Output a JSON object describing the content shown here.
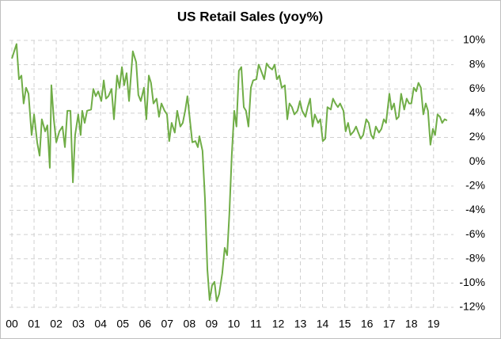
{
  "chart_data": {
    "type": "line",
    "title": "US Retail Sales (yoy%)",
    "x": [
      2000.0,
      2000.21,
      2000.32,
      2000.43,
      2000.53,
      2000.64,
      2000.75,
      2000.89,
      2001.0,
      2001.14,
      2001.25,
      2001.35,
      2001.5,
      2001.6,
      2001.71,
      2001.78,
      2001.89,
      2002.0,
      2002.14,
      2002.28,
      2002.39,
      2002.5,
      2002.64,
      2002.75,
      2002.85,
      2002.99,
      2003.1,
      2003.17,
      2003.28,
      2003.39,
      2003.57,
      2003.67,
      2003.78,
      2003.89,
      2004.03,
      2004.14,
      2004.24,
      2004.35,
      2004.49,
      2004.6,
      2004.74,
      2004.85,
      2004.96,
      2005.06,
      2005.17,
      2005.28,
      2005.45,
      2005.6,
      2005.7,
      2005.81,
      2005.95,
      2006.06,
      2006.17,
      2006.27,
      2006.38,
      2006.52,
      2006.63,
      2006.74,
      2006.88,
      2006.99,
      2007.09,
      2007.2,
      2007.34,
      2007.45,
      2007.59,
      2007.7,
      2007.81,
      2007.91,
      2008.02,
      2008.13,
      2008.27,
      2008.38,
      2008.45,
      2008.59,
      2008.7,
      2008.81,
      2008.91,
      2009.02,
      2009.13,
      2009.23,
      2009.34,
      2009.48,
      2009.59,
      2009.7,
      2009.8,
      2009.91,
      2010.02,
      2010.12,
      2010.23,
      2010.34,
      2010.45,
      2010.55,
      2010.66,
      2010.77,
      2010.87,
      2011.02,
      2011.12,
      2011.23,
      2011.37,
      2011.48,
      2011.59,
      2011.73,
      2011.84,
      2011.94,
      2012.05,
      2012.16,
      2012.3,
      2012.41,
      2012.51,
      2012.62,
      2012.73,
      2012.87,
      2012.98,
      2013.08,
      2013.23,
      2013.33,
      2013.44,
      2013.55,
      2013.65,
      2013.8,
      2013.9,
      2014.01,
      2014.12,
      2014.22,
      2014.37,
      2014.47,
      2014.58,
      2014.69,
      2014.79,
      2014.94,
      2015.04,
      2015.15,
      2015.26,
      2015.4,
      2015.51,
      2015.61,
      2015.72,
      2015.83,
      2015.97,
      2016.08,
      2016.19,
      2016.29,
      2016.4,
      2016.54,
      2016.65,
      2016.76,
      2016.86,
      2017.01,
      2017.11,
      2017.22,
      2017.33,
      2017.43,
      2017.54,
      2017.68,
      2017.79,
      2017.9,
      2018.0,
      2018.11,
      2018.22,
      2018.32,
      2018.43,
      2018.54,
      2018.65,
      2018.75,
      2018.86,
      2018.97,
      2019.07,
      2019.18,
      2019.29,
      2019.39,
      2019.5,
      2019.61
    ],
    "series": [
      {
        "color": "#70ad47",
        "values": [
          8.5,
          9.7,
          6.8,
          7.1,
          4.8,
          6.1,
          5.6,
          2.2,
          3.9,
          1.6,
          0.5,
          3.5,
          2.5,
          3.0,
          -0.5,
          6.3,
          3.5,
          1.6,
          2.5,
          2.9,
          1.2,
          4.2,
          4.2,
          -1.7,
          2.2,
          3.9,
          2.2,
          4.2,
          3.2,
          4.2,
          4.3,
          6.0,
          5.4,
          5.8,
          5.0,
          6.7,
          5.2,
          5.4,
          6.0,
          3.5,
          7.1,
          6.1,
          7.8,
          6.3,
          7.3,
          5.0,
          9.1,
          8.2,
          5.5,
          5.0,
          6.1,
          3.5,
          7.1,
          6.5,
          4.8,
          5.2,
          3.7,
          4.8,
          4.2,
          3.9,
          1.7,
          3.2,
          2.4,
          4.2,
          2.9,
          3.2,
          4.2,
          5.4,
          3.5,
          1.6,
          1.7,
          1.2,
          2.1,
          0.9,
          -3.0,
          -8.9,
          -11.4,
          -10.2,
          -9.9,
          -11.5,
          -10.9,
          -9.2,
          -7.1,
          -7.7,
          -4.3,
          0.6,
          4.2,
          2.9,
          7.5,
          7.8,
          4.5,
          4.2,
          2.9,
          6.1,
          6.7,
          6.8,
          8.0,
          7.5,
          6.8,
          8.1,
          7.8,
          7.6,
          8.0,
          6.8,
          7.1,
          6.1,
          6.3,
          3.5,
          4.8,
          4.5,
          3.9,
          4.2,
          5.0,
          4.2,
          3.7,
          4.5,
          5.2,
          2.9,
          3.9,
          3.2,
          3.5,
          1.7,
          1.9,
          4.5,
          4.3,
          5.2,
          4.8,
          4.5,
          4.8,
          4.2,
          2.5,
          3.2,
          2.2,
          2.5,
          2.9,
          2.4,
          1.9,
          2.2,
          3.5,
          3.2,
          2.2,
          1.9,
          2.9,
          2.4,
          2.7,
          3.5,
          3.2,
          5.6,
          4.3,
          4.8,
          3.5,
          3.7,
          5.6,
          4.3,
          5.2,
          4.8,
          4.8,
          6.1,
          5.8,
          6.5,
          6.1,
          3.9,
          4.8,
          4.2,
          1.4,
          2.7,
          2.2,
          3.9,
          3.7,
          3.2,
          3.5,
          3.4
        ]
      }
    ],
    "xlim": [
      2000,
      2019.9
    ],
    "xticks": [
      {
        "value": 2000,
        "label": "00"
      },
      {
        "value": 2001,
        "label": "01"
      },
      {
        "value": 2002,
        "label": "02"
      },
      {
        "value": 2003,
        "label": "03"
      },
      {
        "value": 2004,
        "label": "04"
      },
      {
        "value": 2005,
        "label": "05"
      },
      {
        "value": 2006,
        "label": "06"
      },
      {
        "value": 2007,
        "label": "07"
      },
      {
        "value": 2008,
        "label": "08"
      },
      {
        "value": 2009,
        "label": "09"
      },
      {
        "value": 2010,
        "label": "10"
      },
      {
        "value": 2011,
        "label": "11"
      },
      {
        "value": 2012,
        "label": "12"
      },
      {
        "value": 2013,
        "label": "13"
      },
      {
        "value": 2014,
        "label": "14"
      },
      {
        "value": 2015,
        "label": "15"
      },
      {
        "value": 2016,
        "label": "16"
      },
      {
        "value": 2017,
        "label": "17"
      },
      {
        "value": 2018,
        "label": "18"
      },
      {
        "value": 2019,
        "label": "19"
      }
    ],
    "ylim": [
      -12,
      10
    ],
    "yticks": [
      {
        "value": 10,
        "label": "10%"
      },
      {
        "value": 8,
        "label": "8%"
      },
      {
        "value": 6,
        "label": "6%"
      },
      {
        "value": 4,
        "label": "4%"
      },
      {
        "value": 2,
        "label": "2%"
      },
      {
        "value": 0,
        "label": "0%"
      },
      {
        "value": -2,
        "label": "-2%"
      },
      {
        "value": -4,
        "label": "-4%"
      },
      {
        "value": -6,
        "label": "-6%"
      },
      {
        "value": -8,
        "label": "-8%"
      },
      {
        "value": -10,
        "label": "-10%"
      },
      {
        "value": -12,
        "label": "-12%"
      }
    ],
    "grid": true
  }
}
